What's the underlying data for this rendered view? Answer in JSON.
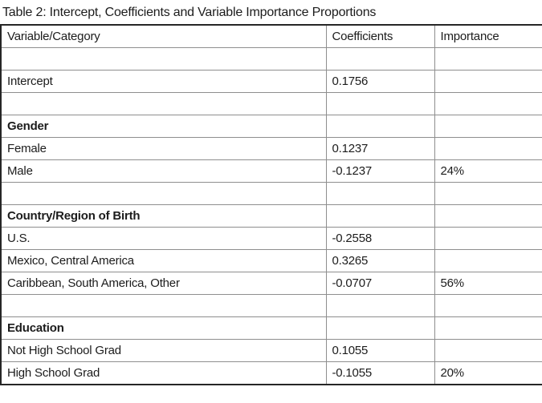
{
  "title": "Table 2: Intercept, Coefficients and Variable Importance Proportions",
  "table": {
    "columns": [
      "Variable/Category",
      "Coefficients",
      "Importance"
    ],
    "rows": [
      {
        "type": "empty",
        "cells": [
          "",
          "",
          ""
        ]
      },
      {
        "type": "data",
        "cells": [
          "Intercept",
          "0.1756",
          ""
        ]
      },
      {
        "type": "empty",
        "cells": [
          "",
          "",
          ""
        ]
      },
      {
        "type": "category",
        "cells": [
          "Gender",
          "",
          ""
        ]
      },
      {
        "type": "data",
        "cells": [
          "Female",
          "0.1237",
          ""
        ]
      },
      {
        "type": "data",
        "cells": [
          "Male",
          "-0.1237",
          "24%"
        ]
      },
      {
        "type": "empty",
        "cells": [
          "",
          "",
          ""
        ]
      },
      {
        "type": "category",
        "cells": [
          "Country/Region of Birth",
          "",
          ""
        ]
      },
      {
        "type": "data",
        "cells": [
          "U.S.",
          "-0.2558",
          ""
        ]
      },
      {
        "type": "data",
        "cells": [
          "Mexico, Central America",
          "0.3265",
          ""
        ]
      },
      {
        "type": "data",
        "cells": [
          "Caribbean, South America, Other",
          "-0.0707",
          "56%"
        ]
      },
      {
        "type": "empty",
        "cells": [
          "",
          "",
          ""
        ]
      },
      {
        "type": "category",
        "cells": [
          "Education",
          "",
          ""
        ]
      },
      {
        "type": "data",
        "cells": [
          "Not High School Grad",
          "0.1055",
          ""
        ]
      },
      {
        "type": "data",
        "cells": [
          "High School Grad",
          "-0.1055",
          "20%"
        ]
      }
    ]
  },
  "chart_data": {
    "type": "table",
    "title": "Table 2: Intercept, Coefficients and Variable Importance Proportions",
    "columns": [
      "Variable/Category",
      "Coefficients",
      "Importance"
    ],
    "intercept": 0.1756,
    "groups": [
      {
        "variable": "Gender",
        "importance": "24%",
        "categories": [
          {
            "name": "Female",
            "coefficient": 0.1237
          },
          {
            "name": "Male",
            "coefficient": -0.1237
          }
        ]
      },
      {
        "variable": "Country/Region of Birth",
        "importance": "56%",
        "categories": [
          {
            "name": "U.S.",
            "coefficient": -0.2558
          },
          {
            "name": "Mexico, Central America",
            "coefficient": 0.3265
          },
          {
            "name": "Caribbean, South America, Other",
            "coefficient": -0.0707
          }
        ]
      },
      {
        "variable": "Education",
        "importance": "20%",
        "categories": [
          {
            "name": "Not High School Grad",
            "coefficient": 0.1055
          },
          {
            "name": "High School Grad",
            "coefficient": -0.1055
          }
        ]
      }
    ]
  },
  "colors": {
    "text": "#1c1c1c",
    "border_outer": "#262626",
    "border_inner": "#8e8e8e",
    "background": "#ffffff"
  }
}
